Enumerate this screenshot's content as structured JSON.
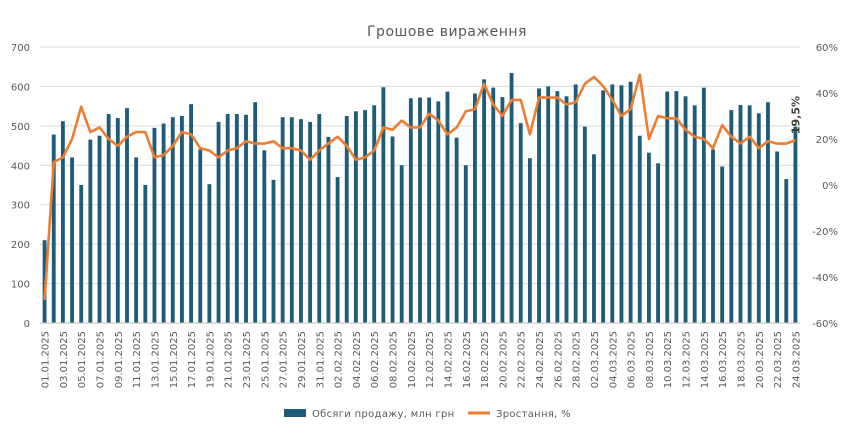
{
  "chart_data": {
    "type": "bar",
    "title": "Грошове вираження",
    "xlabel": "",
    "ylabel": "",
    "ylim": [
      0,
      700
    ],
    "y2lim": [
      -60,
      60
    ],
    "yticks": [
      "0",
      "100",
      "200",
      "300",
      "400",
      "500",
      "600",
      "700"
    ],
    "y2ticks": [
      "-60%",
      "-40%",
      "-20%",
      "0%",
      "20%",
      "40%",
      "60%"
    ],
    "grid": true,
    "legend_position": "bottom",
    "colors": {
      "bars": "#1F5C7A",
      "line": "#ED7D31"
    },
    "dates": [
      "01.01.2025",
      "02.01.2025",
      "03.01.2025",
      "04.01.2025",
      "05.01.2025",
      "06.01.2025",
      "07.01.2025",
      "08.01.2025",
      "09.01.2025",
      "10.01.2025",
      "11.01.2025",
      "12.01.2025",
      "13.01.2025",
      "14.01.2025",
      "15.01.2025",
      "16.01.2025",
      "17.01.2025",
      "18.01.2025",
      "19.01.2025",
      "20.01.2025",
      "21.01.2025",
      "22.01.2025",
      "23.01.2025",
      "24.01.2025",
      "25.01.2025",
      "26.01.2025",
      "27.01.2025",
      "28.01.2025",
      "29.01.2025",
      "30.01.2025",
      "31.01.2025",
      "01.02.2025",
      "02.02.2025",
      "03.02.2025",
      "04.02.2025",
      "05.02.2025",
      "06.02.2025",
      "07.02.2025",
      "08.02.2025",
      "09.02.2025",
      "10.02.2025",
      "11.02.2025",
      "12.02.2025",
      "13.02.2025",
      "14.02.2025",
      "15.02.2025",
      "16.02.2025",
      "17.02.2025",
      "18.02.2025",
      "19.02.2025",
      "20.02.2025",
      "21.02.2025",
      "22.02.2025",
      "23.02.2025",
      "24.02.2025",
      "25.02.2025",
      "26.02.2025",
      "27.02.2025",
      "28.02.2025",
      "01.03.2025",
      "02.03.2025",
      "03.03.2025",
      "04.03.2025",
      "05.03.2025",
      "06.03.2025",
      "07.03.2025",
      "08.03.2025",
      "09.03.2025",
      "10.03.2025",
      "11.03.2025",
      "12.03.2025",
      "13.03.2025",
      "14.03.2025",
      "15.03.2025",
      "16.03.2025",
      "17.03.2025",
      "18.03.2025",
      "19.03.2025",
      "20.03.2025",
      "21.03.2025",
      "22.03.2025",
      "23.03.2025",
      "24.03.2025"
    ],
    "x_tick_labels": [
      "01.01.2025",
      "03.01.2025",
      "05.01.2025",
      "07.01.2025",
      "09.01.2025",
      "11.01.2025",
      "13.01.2025",
      "15.01.2025",
      "17.01.2025",
      "19.01.2025",
      "21.01.2025",
      "23.01.2025",
      "25.01.2025",
      "27.01.2025",
      "29.01.2025",
      "31.01.2025",
      "02.02.2025",
      "04.02.2025",
      "06.02.2025",
      "08.02.2025",
      "10.02.2025",
      "12.02.2025",
      "14.02.2025",
      "16.02.2025",
      "18.02.2025",
      "20.02.2025",
      "22.02.2025",
      "24.02.2025",
      "26.02.2025",
      "28.02.2025",
      "02.03.2025",
      "04.03.2025",
      "06.03.2025",
      "08.03.2025",
      "10.03.2025",
      "12.03.2025",
      "14.03.2025",
      "16.03.2025",
      "18.03.2025",
      "20.03.2025",
      "22.03.2025",
      "24.03.2025"
    ],
    "series": [
      {
        "name": "Обсяги продажу, млн грн",
        "type": "bar",
        "axis": "left",
        "values": [
          210,
          478,
          512,
          420,
          350,
          465,
          475,
          530,
          520,
          545,
          420,
          350,
          495,
          506,
          522,
          525,
          555,
          440,
          352,
          510,
          530,
          530,
          528,
          560,
          438,
          363,
          522,
          522,
          517,
          510,
          530,
          472,
          370,
          525,
          537,
          540,
          552,
          598,
          473,
          400,
          570,
          572,
          572,
          562,
          587,
          470,
          400,
          582,
          618,
          597,
          573,
          634,
          507,
          418,
          595,
          600,
          588,
          575,
          605,
          498,
          428,
          590,
          605,
          603,
          612,
          475,
          432,
          405,
          587,
          588,
          575,
          552,
          597,
          440,
          397,
          540,
          553,
          552,
          532,
          560,
          435,
          365,
          498
        ]
      },
      {
        "name": "Зростання, %",
        "type": "line",
        "axis": "right",
        "values": [
          -50,
          10,
          12,
          20,
          34,
          23,
          25,
          20,
          17,
          21,
          23,
          23,
          12,
          13,
          17,
          23,
          22,
          16,
          15,
          12,
          15,
          16,
          19,
          18,
          18,
          19,
          16,
          16,
          15,
          11,
          15,
          18,
          21,
          17,
          11,
          12,
          15,
          25,
          24,
          28,
          25,
          25,
          31,
          28,
          22,
          25,
          32,
          33,
          44,
          35,
          30,
          37,
          37,
          22,
          38,
          38,
          38,
          35,
          36,
          44,
          47,
          43,
          37,
          30,
          33,
          48,
          20,
          30,
          29,
          29,
          24,
          21,
          20,
          16,
          26,
          21,
          18,
          21,
          16,
          19,
          18,
          18,
          19.5
        ]
      }
    ],
    "annotations": [
      "19,5%"
    ]
  }
}
